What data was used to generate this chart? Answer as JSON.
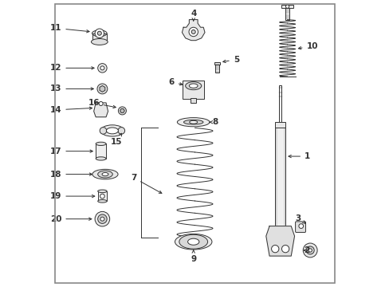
{
  "background_color": "#ffffff",
  "border_color": "#aaaaaa",
  "line_color": "#333333",
  "figsize": [
    4.89,
    3.6
  ],
  "dpi": 100
}
